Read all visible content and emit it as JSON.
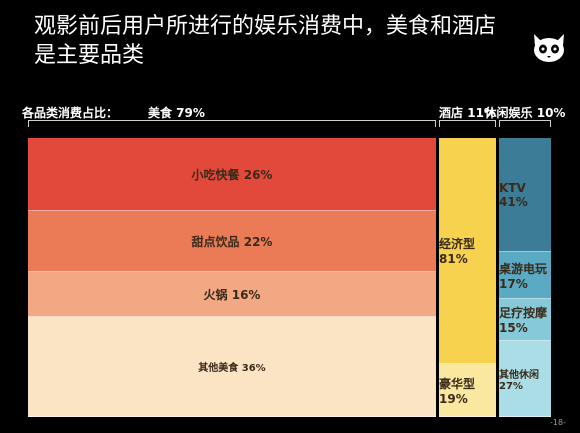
{
  "title": "观影前后用户所进行的娱乐消费中，美食和酒店是主要品类",
  "page_number": "-18-",
  "category_label": "各品类消费占比：",
  "colors": {
    "background": "#000000"
  },
  "chart_data": {
    "type": "mekko",
    "groups": [
      {
        "name": "美食 79%",
        "share": 79,
        "segments": [
          {
            "label": "小吃快餐 26%",
            "value": 26,
            "color": "#e2493b"
          },
          {
            "label": "甜点饮品 22%",
            "value": 22,
            "color": "#ea7b56"
          },
          {
            "label": "火锅 16%",
            "value": 16,
            "color": "#f2a983"
          },
          {
            "label": "其他美食 36%",
            "value": 36,
            "color": "#fbe4c4"
          }
        ]
      },
      {
        "name": "酒店 11%",
        "share": 11,
        "segments": [
          {
            "label": "经济型 81%",
            "value": 81,
            "color": "#f7d24f"
          },
          {
            "label": "豪华型 19%",
            "value": 19,
            "color": "#fae7a0"
          }
        ]
      },
      {
        "name": "休闲娱乐 10%",
        "share": 10,
        "segments": [
          {
            "label": "KTV 41%",
            "value": 41,
            "color": "#3d7c96"
          },
          {
            "label": "桌游电玩 17%",
            "value": 17,
            "color": "#5aaac4"
          },
          {
            "label": "足疗按摩 15%",
            "value": 15,
            "color": "#86cad9"
          },
          {
            "label": "其他休闲 27%",
            "value": 27,
            "color": "#aadde6"
          }
        ]
      }
    ]
  }
}
